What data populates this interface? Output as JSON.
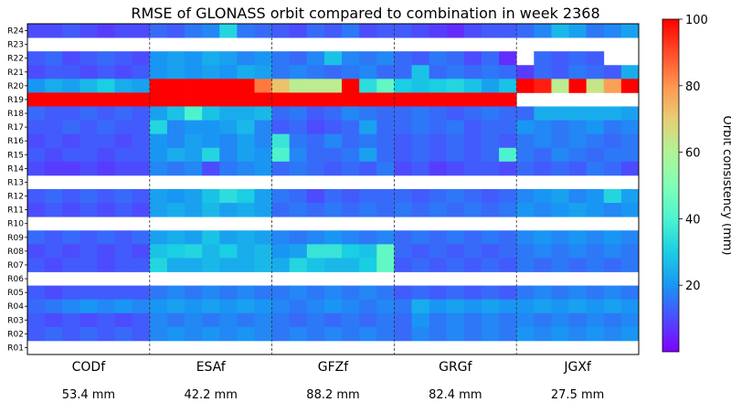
{
  "chart_data": {
    "type": "heatmap",
    "title": "RMSE of GLONASS orbit compared to combination in week 2368",
    "satellites": [
      "R01",
      "R02",
      "R03",
      "R04",
      "R05",
      "R06",
      "R07",
      "R08",
      "R09",
      "R10",
      "R11",
      "R12",
      "R13",
      "R14",
      "R15",
      "R16",
      "R17",
      "R18",
      "R19",
      "R20",
      "R21",
      "R22",
      "R23",
      "R24"
    ],
    "centers": [
      "CODf",
      "ESAf",
      "GFZf",
      "GRGf",
      "JGXf"
    ],
    "rmse_labels": [
      "53.4 mm",
      "42.2 mm",
      "88.2 mm",
      "82.4 mm",
      "27.5 mm"
    ],
    "days_per_center": 7,
    "colorbar": {
      "label": "Orbit consistency (mm)",
      "min": 0,
      "max": 100,
      "ticks": [
        20,
        40,
        60,
        80,
        100
      ]
    },
    "no_data_rows": [
      "R01",
      "R06",
      "R10",
      "R13",
      "R23"
    ],
    "series": [
      {
        "name": "R24",
        "values": [
          [
            10,
            10,
            12,
            10,
            8,
            10,
            10
          ],
          [
            14,
            12,
            16,
            18,
            32,
            16,
            14
          ],
          [
            12,
            10,
            14,
            12,
            16,
            10,
            12
          ],
          [
            12,
            10,
            8,
            6,
            10,
            12,
            12
          ],
          [
            14,
            18,
            26,
            22,
            16,
            18,
            22
          ]
        ]
      },
      {
        "name": "R22",
        "values": [
          [
            12,
            14,
            10,
            12,
            14,
            12,
            10
          ],
          [
            20,
            22,
            20,
            24,
            22,
            18,
            20
          ],
          [
            16,
            14,
            18,
            28,
            18,
            16,
            18
          ],
          [
            14,
            12,
            16,
            14,
            10,
            14,
            6
          ],
          [
            null,
            14,
            12,
            14,
            12,
            null,
            null
          ]
        ]
      },
      {
        "name": "R21",
        "values": [
          [
            10,
            12,
            12,
            10,
            12,
            10,
            12
          ],
          [
            20,
            22,
            20,
            22,
            20,
            24,
            22
          ],
          [
            16,
            18,
            16,
            14,
            16,
            18,
            14
          ],
          [
            14,
            28,
            14,
            16,
            14,
            16,
            14
          ],
          [
            8,
            14,
            12,
            16,
            14,
            12,
            24
          ]
        ]
      },
      {
        "name": "R20",
        "values": [
          [
            20,
            24,
            22,
            26,
            30,
            24,
            22
          ],
          [
            100,
            100,
            100,
            100,
            100,
            100,
            84
          ],
          [
            72,
            62,
            62,
            62,
            100,
            34,
            44
          ],
          [
            30,
            28,
            30,
            32,
            28,
            22,
            28
          ],
          [
            100,
            96,
            62,
            100,
            64,
            78,
            100
          ]
        ]
      },
      {
        "name": "R19",
        "values": [
          [
            100,
            100,
            100,
            100,
            100,
            100,
            100
          ],
          [
            100,
            100,
            100,
            100,
            100,
            100,
            100
          ],
          [
            100,
            100,
            100,
            100,
            100,
            100,
            100
          ],
          [
            100,
            100,
            100,
            100,
            100,
            100,
            100
          ],
          [
            null,
            null,
            null,
            null,
            null,
            null,
            null
          ]
        ]
      },
      {
        "name": "R18",
        "values": [
          [
            14,
            12,
            12,
            14,
            12,
            14,
            12
          ],
          [
            22,
            28,
            40,
            28,
            24,
            24,
            26
          ],
          [
            14,
            16,
            12,
            14,
            18,
            16,
            14
          ],
          [
            14,
            16,
            14,
            12,
            14,
            16,
            14
          ],
          [
            14,
            24,
            24,
            24,
            24,
            24,
            22
          ]
        ]
      },
      {
        "name": "R17",
        "values": [
          [
            12,
            12,
            14,
            12,
            14,
            12,
            12
          ],
          [
            32,
            18,
            20,
            20,
            22,
            26,
            18
          ],
          [
            12,
            14,
            10,
            12,
            14,
            22,
            14
          ],
          [
            14,
            16,
            14,
            16,
            12,
            14,
            14
          ],
          [
            20,
            18,
            16,
            18,
            20,
            16,
            18
          ]
        ]
      },
      {
        "name": "R16",
        "values": [
          [
            10,
            12,
            10,
            12,
            12,
            10,
            12
          ],
          [
            20,
            18,
            22,
            20,
            18,
            22,
            18
          ],
          [
            36,
            16,
            14,
            18,
            14,
            16,
            14
          ],
          [
            12,
            14,
            12,
            14,
            12,
            14,
            12
          ],
          [
            16,
            18,
            16,
            18,
            16,
            14,
            16
          ]
        ]
      },
      {
        "name": "R15",
        "values": [
          [
            12,
            10,
            12,
            12,
            10,
            12,
            12
          ],
          [
            20,
            24,
            22,
            32,
            18,
            22,
            20
          ],
          [
            40,
            18,
            14,
            14,
            16,
            22,
            14
          ],
          [
            12,
            14,
            12,
            14,
            12,
            14,
            40
          ],
          [
            16,
            14,
            18,
            16,
            14,
            16,
            16
          ]
        ]
      },
      {
        "name": "R14",
        "values": [
          [
            10,
            8,
            8,
            10,
            8,
            10,
            10
          ],
          [
            18,
            16,
            18,
            10,
            16,
            18,
            20
          ],
          [
            14,
            16,
            14,
            12,
            14,
            12,
            16
          ],
          [
            10,
            12,
            8,
            10,
            12,
            12,
            10
          ],
          [
            14,
            12,
            14,
            12,
            16,
            14,
            10
          ]
        ]
      },
      {
        "name": "R12",
        "values": [
          [
            12,
            14,
            12,
            14,
            12,
            14,
            12
          ],
          [
            22,
            20,
            22,
            28,
            34,
            30,
            22
          ],
          [
            16,
            14,
            10,
            14,
            12,
            14,
            14
          ],
          [
            14,
            12,
            14,
            16,
            14,
            12,
            14
          ],
          [
            18,
            20,
            22,
            18,
            20,
            32,
            22
          ]
        ]
      },
      {
        "name": "R11",
        "values": [
          [
            10,
            12,
            10,
            12,
            10,
            12,
            10
          ],
          [
            22,
            24,
            22,
            26,
            22,
            24,
            22
          ],
          [
            14,
            16,
            14,
            16,
            14,
            16,
            14
          ],
          [
            16,
            14,
            16,
            14,
            16,
            14,
            16
          ],
          [
            20,
            18,
            20,
            22,
            20,
            18,
            20
          ]
        ]
      },
      {
        "name": "R09",
        "values": [
          [
            14,
            12,
            14,
            12,
            14,
            12,
            14
          ],
          [
            22,
            24,
            22,
            28,
            22,
            24,
            22
          ],
          [
            18,
            16,
            18,
            20,
            18,
            16,
            18
          ],
          [
            14,
            16,
            14,
            16,
            14,
            16,
            14
          ],
          [
            18,
            20,
            18,
            20,
            18,
            20,
            18
          ]
        ]
      },
      {
        "name": "R08",
        "values": [
          [
            10,
            12,
            10,
            12,
            10,
            12,
            10
          ],
          [
            28,
            30,
            32,
            26,
            30,
            24,
            26
          ],
          [
            20,
            22,
            36,
            36,
            30,
            28,
            44
          ],
          [
            14,
            12,
            14,
            12,
            14,
            12,
            14
          ],
          [
            16,
            18,
            16,
            18,
            16,
            18,
            16
          ]
        ]
      },
      {
        "name": "R07",
        "values": [
          [
            12,
            10,
            12,
            12,
            10,
            12,
            12
          ],
          [
            32,
            24,
            24,
            26,
            24,
            24,
            26
          ],
          [
            24,
            32,
            28,
            26,
            26,
            30,
            44
          ],
          [
            12,
            14,
            12,
            14,
            12,
            14,
            12
          ],
          [
            16,
            14,
            16,
            14,
            16,
            14,
            16
          ]
        ]
      },
      {
        "name": "R05",
        "values": [
          [
            12,
            10,
            12,
            12,
            12,
            12,
            12
          ],
          [
            16,
            18,
            16,
            18,
            16,
            18,
            16
          ],
          [
            16,
            18,
            16,
            18,
            16,
            18,
            16
          ],
          [
            12,
            14,
            12,
            14,
            12,
            14,
            12
          ],
          [
            16,
            18,
            16,
            18,
            16,
            18,
            16
          ]
        ]
      },
      {
        "name": "R04",
        "values": [
          [
            14,
            16,
            18,
            20,
            18,
            20,
            18
          ],
          [
            20,
            22,
            20,
            22,
            20,
            22,
            20
          ],
          [
            18,
            16,
            18,
            20,
            18,
            16,
            18
          ],
          [
            16,
            24,
            20,
            22,
            20,
            22,
            20
          ],
          [
            20,
            22,
            20,
            22,
            20,
            22,
            20
          ]
        ]
      },
      {
        "name": "R03",
        "values": [
          [
            12,
            10,
            12,
            10,
            12,
            10,
            12
          ],
          [
            18,
            16,
            18,
            16,
            18,
            16,
            18
          ],
          [
            16,
            14,
            16,
            14,
            16,
            14,
            16
          ],
          [
            14,
            20,
            16,
            18,
            16,
            18,
            16
          ],
          [
            18,
            16,
            18,
            16,
            18,
            16,
            18
          ]
        ]
      },
      {
        "name": "R02",
        "values": [
          [
            12,
            14,
            12,
            14,
            12,
            14,
            12
          ],
          [
            18,
            20,
            18,
            20,
            18,
            20,
            18
          ],
          [
            16,
            18,
            16,
            18,
            16,
            18,
            16
          ],
          [
            14,
            18,
            16,
            18,
            16,
            18,
            16
          ],
          [
            20,
            18,
            20,
            18,
            20,
            18,
            20
          ]
        ]
      }
    ]
  }
}
